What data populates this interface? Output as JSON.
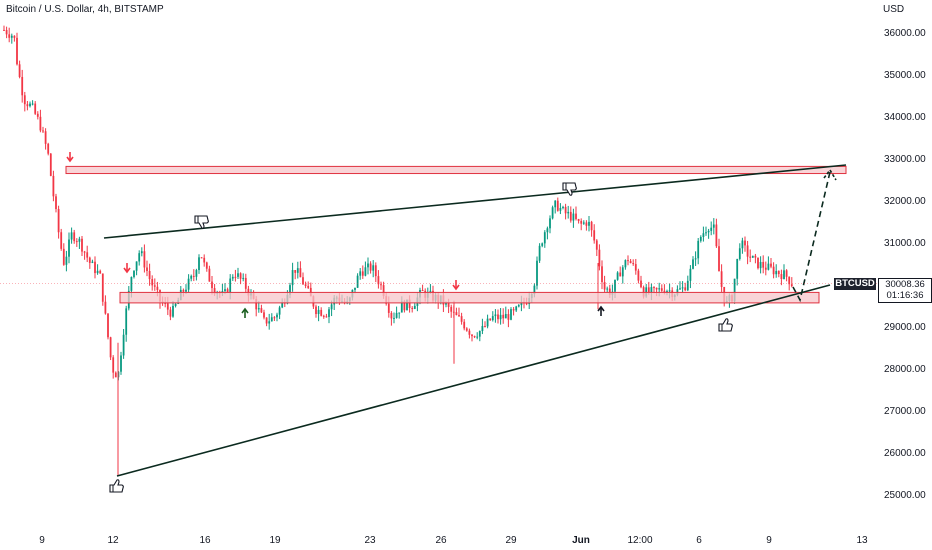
{
  "header": {
    "title": "Bitcoin / U.S. Dollar, 4h, BITSTAMP",
    "currency": "USD"
  },
  "price_tag": {
    "symbol": "BTCUSD",
    "price": "30008.36",
    "countdown": "01:16:36"
  },
  "colors": {
    "up": "#089981",
    "down": "#f23645",
    "zone_fill": "#f7c6c9",
    "zone_stroke": "#e0323f",
    "trendline": "#0b2a1f"
  },
  "chart_data": {
    "type": "candlestick",
    "title": "Bitcoin / U.S. Dollar, 4h, BITSTAMP",
    "ylabel": "USD",
    "ylim": [
      24600,
      36400
    ],
    "y_ticks": [
      "36000.00",
      "35000.00",
      "34000.00",
      "33000.00",
      "32000.00",
      "31000.00",
      "30000.00",
      "29000.00",
      "28000.00",
      "27000.00",
      "26000.00",
      "25000.00"
    ],
    "x_ticks": [
      "9",
      "12",
      "16",
      "19",
      "23",
      "26",
      "29",
      "Jun",
      "12:00",
      "6",
      "9",
      "13"
    ],
    "last_price": 30008.36,
    "series": [
      {
        "anchor": "9",
        "close": 36000
      },
      {
        "anchor": "9",
        "close": 35900
      },
      {
        "anchor": "9",
        "close": 35000
      },
      {
        "anchor": "9",
        "close": 34200
      },
      {
        "anchor": "9",
        "close": 33400
      },
      {
        "anchor": "9",
        "close": 32000
      },
      {
        "anchor": "9",
        "close": 30900
      },
      {
        "anchor": "12",
        "close": 29000
      },
      {
        "anchor": "12",
        "close": 27900
      },
      {
        "anchor": "12",
        "close": 29300
      },
      {
        "anchor": "12",
        "close": 30300
      },
      {
        "anchor": "16",
        "close": 29600
      },
      {
        "anchor": "16",
        "close": 30000
      },
      {
        "anchor": "16",
        "close": 30900
      },
      {
        "anchor": "16",
        "close": 30000
      },
      {
        "anchor": "19",
        "close": 29800
      },
      {
        "anchor": "19",
        "close": 29100
      },
      {
        "anchor": "19",
        "close": 29500
      },
      {
        "anchor": "19",
        "close": 30400
      },
      {
        "anchor": "23",
        "close": 29400
      },
      {
        "anchor": "23",
        "close": 29500
      },
      {
        "anchor": "23",
        "close": 30200
      },
      {
        "anchor": "23",
        "close": 30400
      },
      {
        "anchor": "26",
        "close": 29200
      },
      {
        "anchor": "26",
        "close": 29500
      },
      {
        "anchor": "26",
        "close": 29300
      },
      {
        "anchor": "26",
        "close": 28900
      },
      {
        "anchor": "29",
        "close": 29200
      },
      {
        "anchor": "29",
        "close": 30100
      },
      {
        "anchor": "29",
        "close": 31700
      },
      {
        "anchor": "29",
        "close": 31900
      },
      {
        "anchor": "Jun",
        "close": 31300
      },
      {
        "anchor": "Jun",
        "close": 29800
      },
      {
        "anchor": "Jun",
        "close": 30600
      },
      {
        "anchor": "12:00",
        "close": 29900
      },
      {
        "anchor": "12:00",
        "close": 29800
      },
      {
        "anchor": "12:00",
        "close": 30000
      },
      {
        "anchor": "6",
        "close": 31500
      },
      {
        "anchor": "6",
        "close": 29600
      },
      {
        "anchor": "6",
        "close": 31200
      },
      {
        "anchor": "9",
        "close": 30500
      },
      {
        "anchor": "9",
        "close": 30008
      }
    ],
    "annotations": {
      "resistance_zone": [
        32630,
        32800
      ],
      "support_zone": [
        29550,
        29800
      ],
      "upper_trendline": {
        "from": {
          "x": "11",
          "y": 31100
        },
        "to": {
          "x": "13",
          "y": 32850
        }
      },
      "lower_trendline": {
        "from": {
          "x": "12",
          "y": 25450
        },
        "to": {
          "x": "12 (next)",
          "y": 30000
        }
      },
      "projection": "dashed path from about 29800 up to the resistance zone",
      "markers": [
        "down-arrow",
        "thumbs-down",
        "down-arrow",
        "up-arrow",
        "down-arrow",
        "thumbs-down",
        "up-arrow",
        "thumbs-up",
        "thumbs-up",
        "up-arrow (projection)"
      ]
    }
  }
}
